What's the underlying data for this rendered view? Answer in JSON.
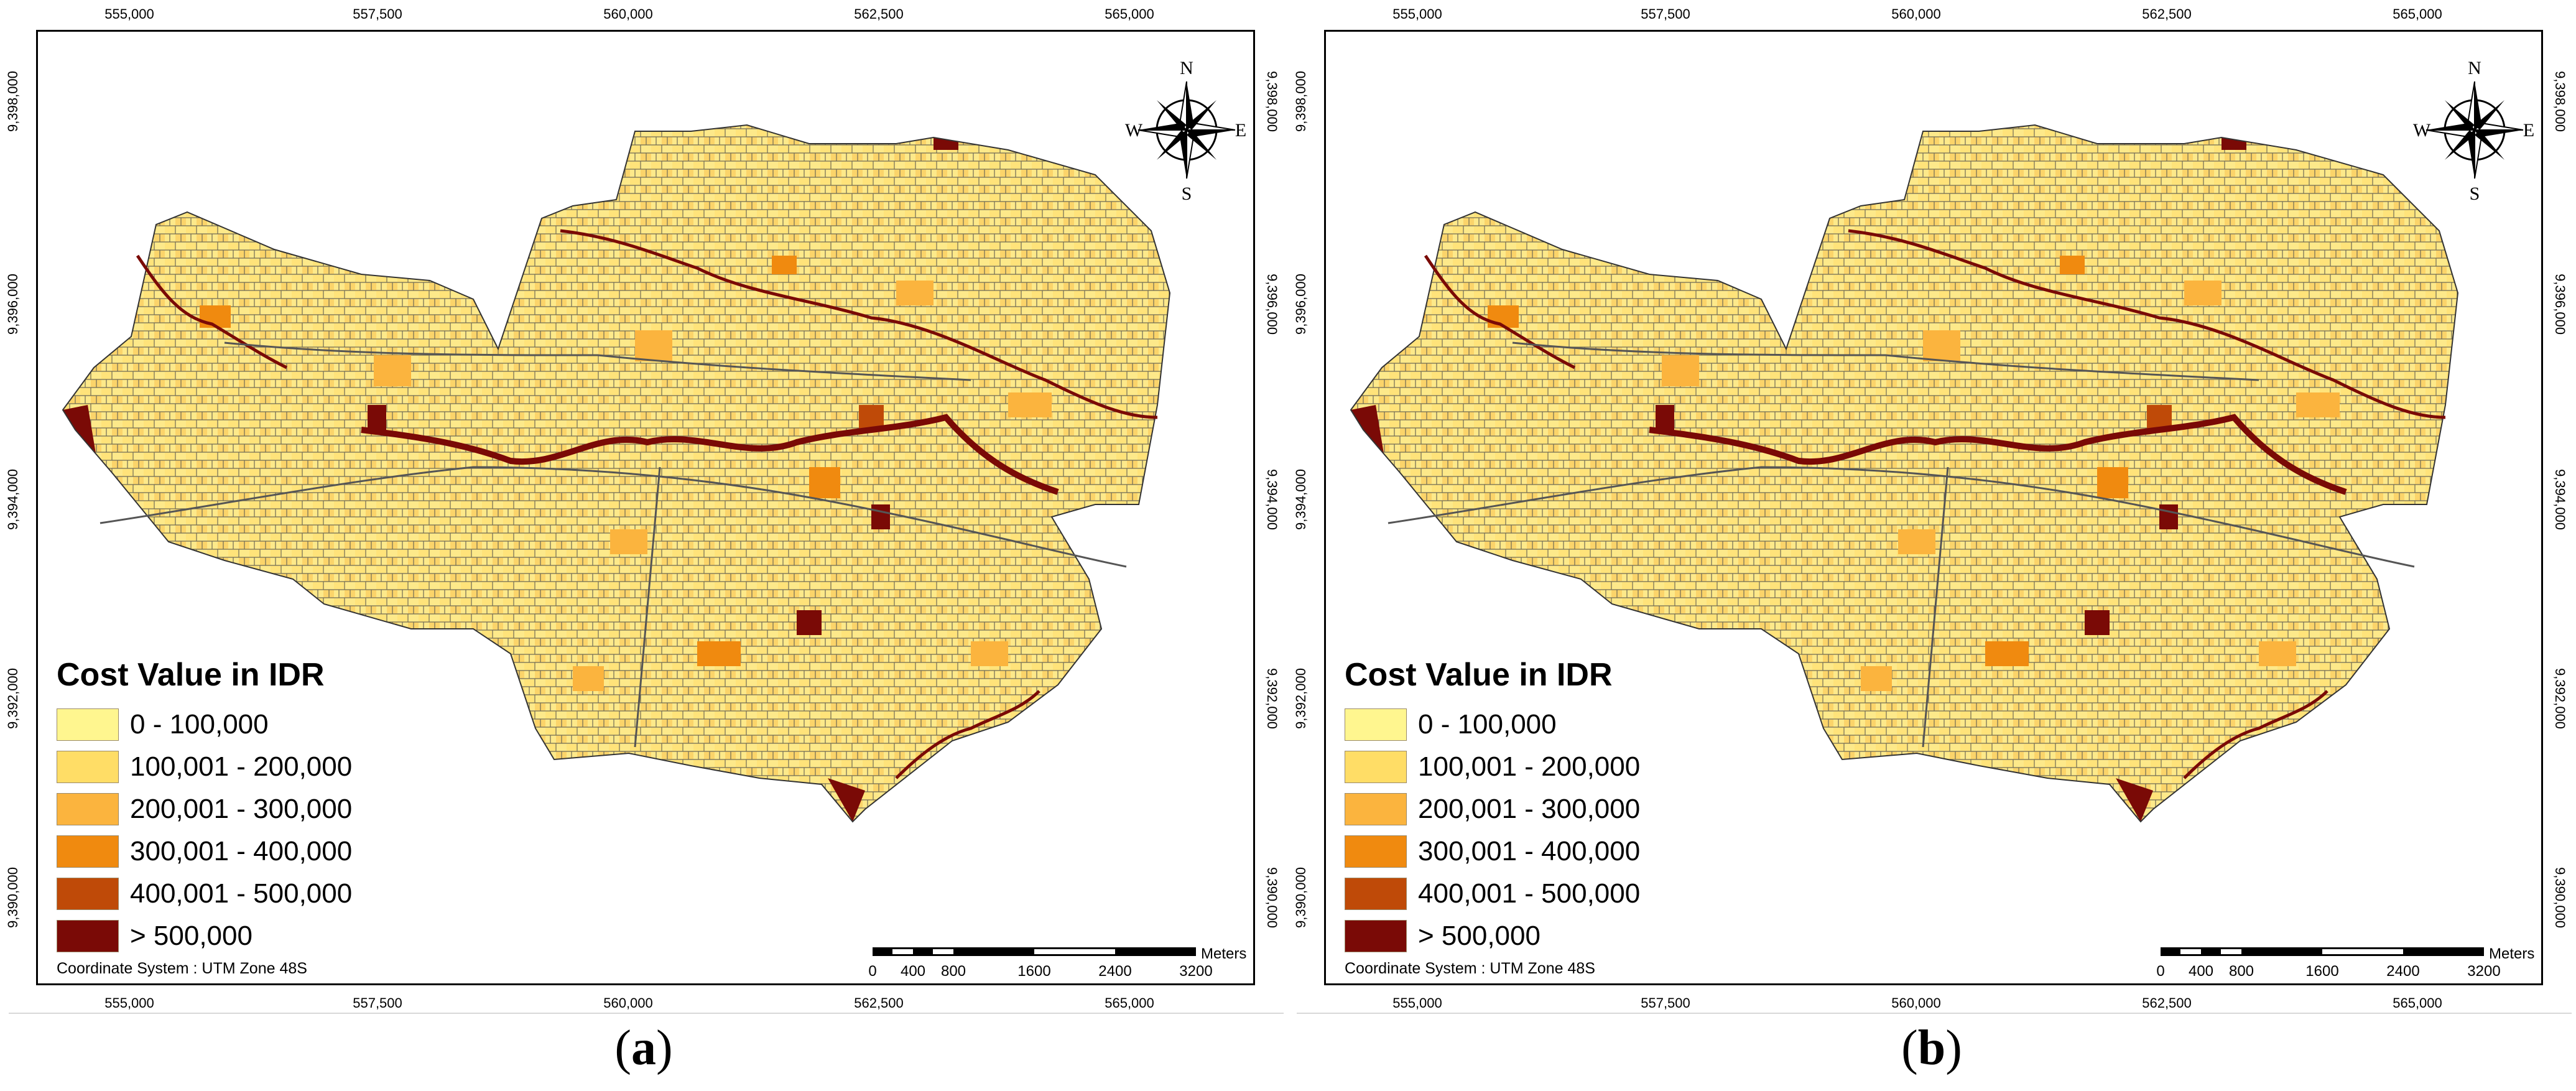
{
  "maps": [
    {
      "id": "a",
      "caption_letter": "a",
      "x_ticks": [
        "555,000",
        "557,500",
        "560,000",
        "562,500",
        "565,000"
      ],
      "y_ticks": [
        "9,398,000",
        "9,396,000",
        "9,394,000",
        "9,392,000",
        "9,390,000"
      ],
      "legend": {
        "title": "Cost Value in IDR",
        "classes": [
          {
            "label": "0 - 100,000",
            "color": "#fff68f"
          },
          {
            "label": "100,001 - 200,000",
            "color": "#ffdd66"
          },
          {
            "label": "200,001 - 300,000",
            "color": "#fbb43e"
          },
          {
            "label": "300,001 - 400,000",
            "color": "#f08a0f"
          },
          {
            "label": "400,001 - 500,000",
            "color": "#bf4a08"
          },
          {
            "label": "> 500,000",
            "color": "#7a0a06"
          }
        ]
      },
      "coordinate_system": "Coordinate System : UTM Zone 48S",
      "scale": {
        "labels": [
          "0",
          "400",
          "800",
          "1600",
          "2400",
          "3200"
        ],
        "unit": "Meters"
      },
      "compass": {
        "n": "N",
        "s": "S",
        "e": "E",
        "w": "W"
      }
    },
    {
      "id": "b",
      "caption_letter": "b",
      "x_ticks": [
        "555,000",
        "557,500",
        "560,000",
        "562,500",
        "565,000"
      ],
      "y_ticks": [
        "9,398,000",
        "9,396,000",
        "9,394,000",
        "9,392,000",
        "9,390,000"
      ],
      "legend": {
        "title": "Cost Value in IDR",
        "classes": [
          {
            "label": "0 - 100,000",
            "color": "#fff68f"
          },
          {
            "label": "100,001 - 200,000",
            "color": "#ffdd66"
          },
          {
            "label": "200,001 - 300,000",
            "color": "#fbb43e"
          },
          {
            "label": "300,001 - 400,000",
            "color": "#f08a0f"
          },
          {
            "label": "400,001 - 500,000",
            "color": "#bf4a08"
          },
          {
            "label": "> 500,000",
            "color": "#7a0a06"
          }
        ]
      },
      "coordinate_system": "Coordinate System : UTM Zone 48S",
      "scale": {
        "labels": [
          "0",
          "400",
          "800",
          "1600",
          "2400",
          "3200"
        ],
        "unit": "Meters"
      },
      "compass": {
        "n": "N",
        "s": "S",
        "e": "E",
        "w": "W"
      }
    }
  ]
}
